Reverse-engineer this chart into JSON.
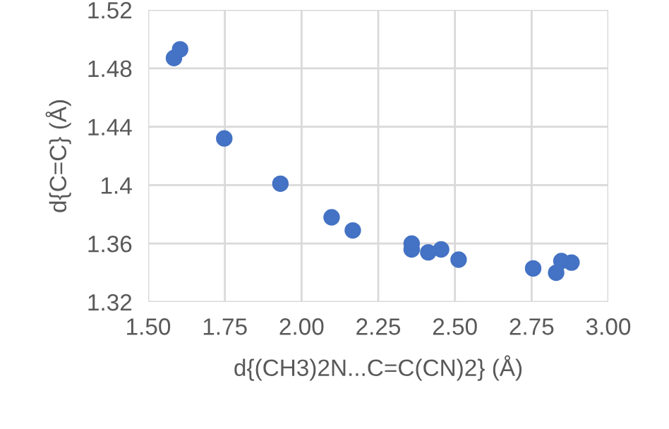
{
  "chart_data": {
    "type": "scatter",
    "xlabel": "d{(CH3)2N...C=C(CN)2} (Å)",
    "ylabel": "d{C=C} (Å)",
    "x": [
      1.584,
      1.604,
      1.748,
      1.931,
      2.098,
      2.167,
      2.359,
      2.359,
      2.413,
      2.455,
      2.512,
      2.755,
      2.83,
      2.847,
      2.88
    ],
    "values": [
      1.487,
      1.493,
      1.432,
      1.401,
      1.378,
      1.369,
      1.36,
      1.356,
      1.354,
      1.356,
      1.349,
      1.343,
      1.34,
      1.348,
      1.347
    ],
    "color": "#4472c4",
    "marker": "circle",
    "xlim": [
      1.5,
      3.0
    ],
    "xticks": [
      {
        "value": 1.5,
        "label": "1.50"
      },
      {
        "value": 1.75,
        "label": "1.75"
      },
      {
        "value": 2.0,
        "label": "2.00"
      },
      {
        "value": 2.25,
        "label": "2.25"
      },
      {
        "value": 2.5,
        "label": "2.50"
      },
      {
        "value": 2.75,
        "label": "2.75"
      },
      {
        "value": 3.0,
        "label": "3.00"
      }
    ],
    "ylim": [
      1.32,
      1.52
    ],
    "yticks": [
      1.32,
      1.36,
      1.4,
      1.44,
      1.48,
      1.52
    ],
    "grid": true
  }
}
